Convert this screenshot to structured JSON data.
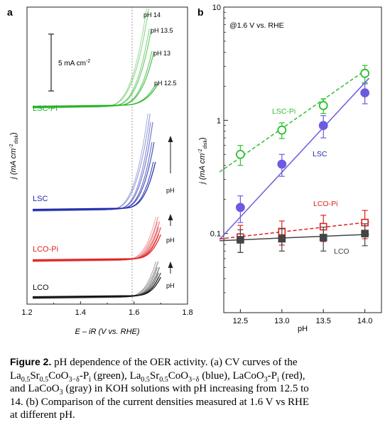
{
  "panel_a": {
    "letter": "a",
    "scale_bar_label": "5 mA cm",
    "scale_bar_sup": "-2",
    "ylabel_main": "j (mA cm",
    "ylabel_sup": "-2",
    "ylabel_sub": "disk",
    "ylabel_end": ")",
    "xlabel": "E – iR (V vs. RHE)",
    "xticks": [
      "1.2",
      "1.4",
      "1.6",
      "1.8"
    ],
    "dashed_line_at": 1.6,
    "ph_labels": [
      "pH 14",
      "pH 13.5",
      "pH 13",
      "pH 12.5"
    ],
    "arrow_label": "pH",
    "sample_labels": [
      {
        "text": "LSC-Pi",
        "color": "#22b022"
      },
      {
        "text": "LSC",
        "color": "#1f2aa8"
      },
      {
        "text": "LCO-Pi",
        "color": "#e02020"
      },
      {
        "text": "LCO",
        "color": "#111111"
      }
    ]
  },
  "panel_b": {
    "letter": "b",
    "annotation": "@1.6 V vs. RHE",
    "xlabel": "pH",
    "ylabel_main": "j (mA cm",
    "ylabel_sup": "-2",
    "ylabel_sub": "disk",
    "ylabel_end": ")",
    "xticks": [
      "12.5",
      "13.0",
      "13.5",
      "14.0"
    ],
    "yticks": [
      "0.1",
      "1",
      "10"
    ]
  },
  "chart_data": [
    {
      "type": "line",
      "panel": "a",
      "xlabel": "E – iR (V vs. RHE)",
      "ylabel": "j (mA cm-2 disk)",
      "xlim": [
        1.2,
        1.8
      ],
      "x_ticks": [
        1.2,
        1.4,
        1.6,
        1.8
      ],
      "series": [
        {
          "name": "LSC-Pi",
          "color": "#22b022",
          "onset": [
            1.555,
            1.58,
            1.6,
            1.62
          ],
          "end_x": [
            1.655,
            1.665,
            1.675,
            1.69
          ]
        },
        {
          "name": "LSC",
          "color": "#1f2aa8",
          "onset": [
            1.575,
            1.6,
            1.615,
            1.63
          ],
          "end_x": [
            1.66,
            1.67,
            1.675,
            1.68
          ]
        },
        {
          "name": "LCO-Pi",
          "color": "#e02020",
          "onset": [
            1.63,
            1.645,
            1.655,
            1.665
          ],
          "end_x": [
            1.69,
            1.695,
            1.7,
            1.7
          ]
        },
        {
          "name": "LCO",
          "color": "#111111",
          "onset": [
            1.635,
            1.65,
            1.66,
            1.67
          ],
          "end_x": [
            1.69,
            1.695,
            1.7,
            1.7
          ]
        }
      ]
    },
    {
      "type": "scatter",
      "panel": "b",
      "xlabel": "pH",
      "ylabel": "j (mA cm-2 disk)",
      "xlim": [
        12.3,
        14.2
      ],
      "ylim": [
        0.02,
        10
      ],
      "y_scale": "log",
      "x": [
        12.5,
        13.0,
        13.5,
        14.0
      ],
      "series": [
        {
          "name": "LSC-Pi",
          "color": "#2fbf2f",
          "marker": "open-circle",
          "values": [
            0.5,
            0.82,
            1.35,
            2.6
          ],
          "err": [
            0.1,
            0.13,
            0.2,
            0.45
          ],
          "fit": [
            0.47,
            2.75
          ],
          "fit_style": "dashed"
        },
        {
          "name": "LSC",
          "color": "#6a5be0",
          "marker": "filled-circle",
          "values": [
            0.17,
            0.41,
            0.9,
            1.75
          ],
          "err": [
            0.045,
            0.09,
            0.2,
            0.35
          ],
          "fit": [
            0.14,
            2.15
          ],
          "fit_style": "solid"
        },
        {
          "name": "LCO-Pi",
          "color": "#e02020",
          "marker": "open-square",
          "values": [
            0.093,
            0.104,
            0.115,
            0.125
          ],
          "err": [
            0.025,
            0.025,
            0.03,
            0.035
          ],
          "fit": [
            0.094,
            0.125
          ],
          "fit_style": "dashed"
        },
        {
          "name": "LCO",
          "color": "#444444",
          "marker": "filled-square",
          "values": [
            0.088,
            0.09,
            0.092,
            0.1
          ],
          "err": [
            0.02,
            0.02,
            0.022,
            0.022
          ],
          "fit": [
            0.088,
            0.098
          ],
          "fit_style": "solid"
        }
      ]
    }
  ],
  "caption": {
    "label": "Figure 2.",
    "line1": " pH dependence of the OER activity. (a) CV curves of the",
    "s1a": "La",
    "s1a_sub": "0.5",
    "s1b": "Sr",
    "s1b_sub": "0.5",
    "s1c": "CoO",
    "s1c_sub": "3−δ",
    "s1d": "-P",
    "s1d_sub": "i",
    "s1e": " (green), ",
    "s2a": "La",
    "s2a_sub": "0.5",
    "s2b": "Sr",
    "s2b_sub": "0.5",
    "s2c": "CoO",
    "s2c_sub": "3−δ",
    "s2d": " (blue), LaCoO",
    "s2d_sub": "3",
    "s2e": "-P",
    "s2e_sub": "i",
    "s2f": " (red),",
    "line3a": "and LaCoO",
    "line3a_sub": "3",
    "line3b": " (gray) in KOH solutions with pH increasing from 12.5 to",
    "line4": "14. (b) Comparison of the current densities measured at 1.6 V vs RHE",
    "line5": "at different pH."
  }
}
